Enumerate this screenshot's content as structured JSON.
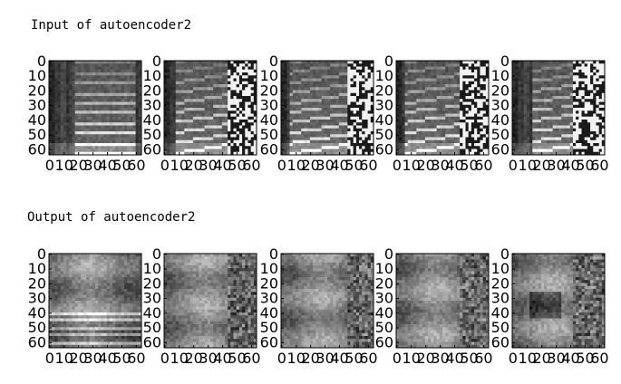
{
  "chart_data": [
    {
      "type": "heatmap",
      "title": "Input of autoencoder2",
      "panel_count": 5,
      "image_size": [
        64,
        64
      ],
      "colormap": "grayscale",
      "xlim": [
        0,
        63
      ],
      "ylim": [
        63,
        0
      ],
      "x_ticks": [
        0,
        10,
        20,
        30,
        40,
        50,
        60
      ],
      "y_ticks": [
        0,
        10,
        20,
        30,
        40,
        50,
        60
      ],
      "panels": [
        {
          "content": "spectrogram with harmonic bands",
          "noise_columns_from": null
        },
        {
          "content": "spectrogram with noise region",
          "noise_columns_from": 44
        },
        {
          "content": "spectrogram with noise region",
          "noise_columns_from": 46
        },
        {
          "content": "spectrogram with noise region",
          "noise_columns_from": 44
        },
        {
          "content": "spectrogram with noise region",
          "noise_columns_from": 42
        }
      ]
    },
    {
      "type": "heatmap",
      "title": "Output of autoencoder2",
      "panel_count": 5,
      "image_size": [
        64,
        64
      ],
      "colormap": "grayscale",
      "xlim": [
        0,
        63
      ],
      "ylim": [
        63,
        0
      ],
      "x_ticks": [
        0,
        10,
        20,
        30,
        40,
        50,
        60
      ],
      "y_ticks": [
        0,
        10,
        20,
        30,
        40,
        50,
        60
      ],
      "panels": [
        {
          "content": "blurred reconstruction",
          "noise_columns_from": null
        },
        {
          "content": "blurred reconstruction",
          "noise_columns_from": 44
        },
        {
          "content": "blurred reconstruction",
          "noise_columns_from": 46
        },
        {
          "content": "blurred reconstruction",
          "noise_columns_from": 44
        },
        {
          "content": "blurred reconstruction",
          "noise_columns_from": 42
        }
      ]
    }
  ]
}
